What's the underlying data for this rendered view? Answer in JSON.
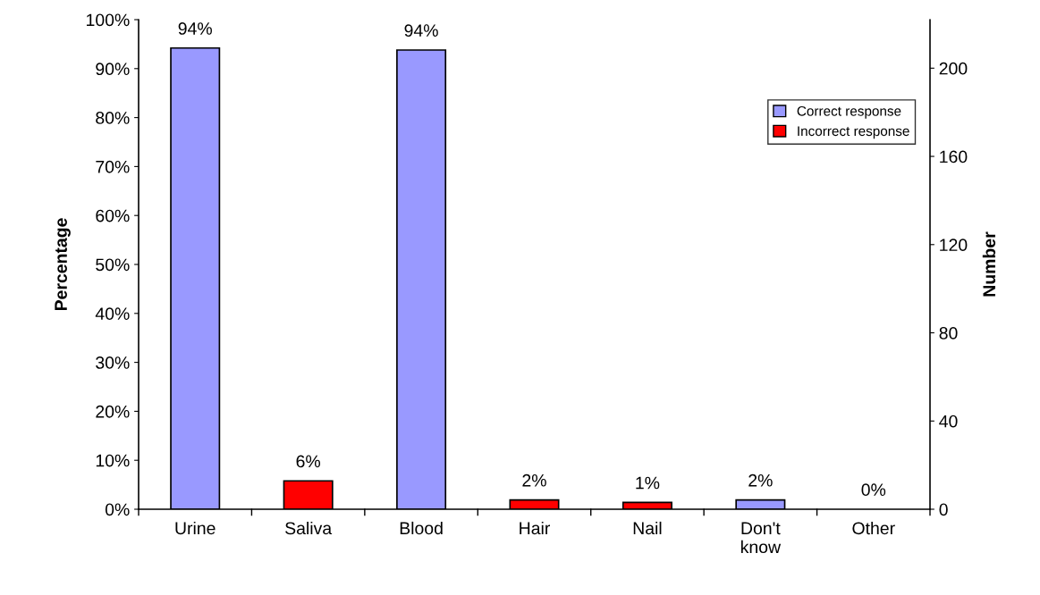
{
  "chart_data": {
    "type": "bar",
    "ylabel": "Percentage",
    "y2label": "Number",
    "categories": [
      "Urine",
      "Saliva",
      "Blood",
      "Hair",
      "Nail",
      "Don't\nknow",
      "Other"
    ],
    "series": [
      {
        "name": "Correct response",
        "color": "#9999ff",
        "values": [
          94.2,
          null,
          93.8,
          null,
          null,
          1.9,
          null
        ],
        "value_labels": [
          "94%",
          null,
          "94%",
          null,
          null,
          "2%",
          null
        ]
      },
      {
        "name": "Incorrect response",
        "color": "#ff0000",
        "values": [
          null,
          5.8,
          null,
          1.9,
          1.4,
          null,
          0
        ],
        "value_labels": [
          null,
          "6%",
          null,
          "2%",
          "1%",
          null,
          "0%"
        ]
      }
    ],
    "ylim": [
      0,
      100
    ],
    "yticks": [
      {
        "value": 0,
        "label": "0%"
      },
      {
        "value": 10,
        "label": "10%"
      },
      {
        "value": 20,
        "label": "20%"
      },
      {
        "value": 30,
        "label": "30%"
      },
      {
        "value": 40,
        "label": "40%"
      },
      {
        "value": 50,
        "label": "50%"
      },
      {
        "value": 60,
        "label": "60%"
      },
      {
        "value": 70,
        "label": "70%"
      },
      {
        "value": 80,
        "label": "80%"
      },
      {
        "value": 90,
        "label": "90%"
      },
      {
        "value": 100,
        "label": "100%"
      }
    ],
    "y2lim": [
      0,
      222
    ],
    "y2ticks": [
      0,
      40,
      80,
      120,
      160,
      200
    ],
    "grid": false,
    "legend": "top right"
  }
}
